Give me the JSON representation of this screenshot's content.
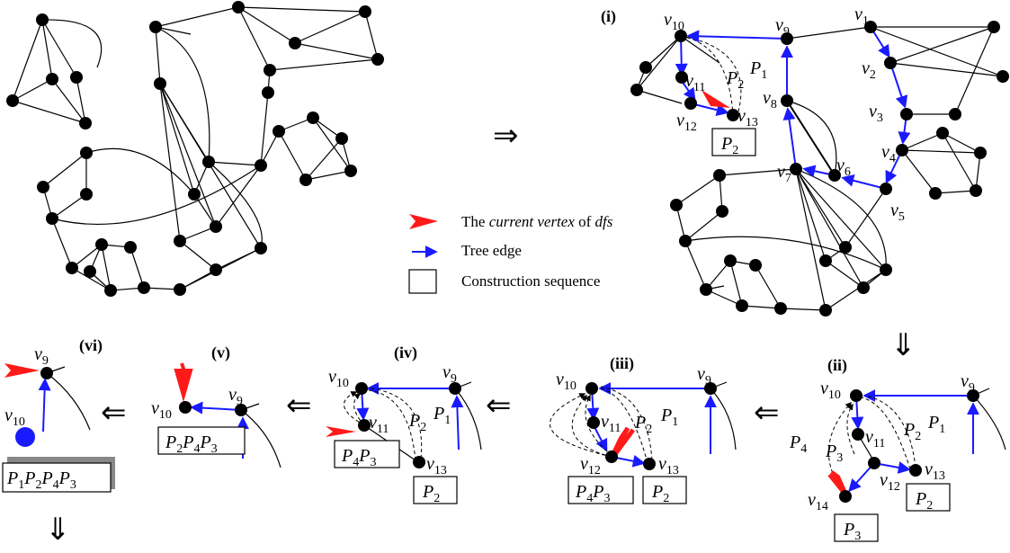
{
  "panels": {
    "i": "(i)",
    "ii": "(ii)",
    "iii": "(iii)",
    "iv": "(iv)",
    "v": "(v)",
    "vi": "(vi)"
  },
  "arrows": {
    "right": "⇒",
    "down": "⇓",
    "left": "⇐"
  },
  "legend": {
    "current_vertex_prefix": "The ",
    "current_vertex_em": "current vertex",
    "current_vertex_mid": " of ",
    "current_vertex_dfs": "dfs",
    "tree_edge": "Tree edge",
    "construction_sequence": "Construction sequence"
  },
  "vertex_labels": {
    "v1": "1",
    "v2": "2",
    "v3": "3",
    "v4": "4",
    "v5": "5",
    "v6": "6",
    "v7": "7",
    "v8": "8",
    "v9": "9",
    "v10": "10",
    "v11": "11",
    "v12": "12",
    "v13": "13",
    "v14": "14"
  },
  "path_labels": {
    "P1": "1",
    "P2": "2",
    "P3": "3",
    "P4": "4"
  },
  "sequences": {
    "s_i": "2",
    "s_ii_a": "3",
    "s_ii_b": "2",
    "s_iii_a": [
      "4",
      "3"
    ],
    "s_iii_b": "2",
    "s_iv_a": [
      "4",
      "3"
    ],
    "s_iv_b": "2",
    "s_v": [
      "2",
      "4",
      "3"
    ],
    "s_vi": [
      "1",
      "2",
      "4",
      "3"
    ]
  },
  "colors": {
    "tree_edge": "#1a1aff",
    "current_vertex": "#ff1a1a",
    "graph_edge": "#000000"
  }
}
